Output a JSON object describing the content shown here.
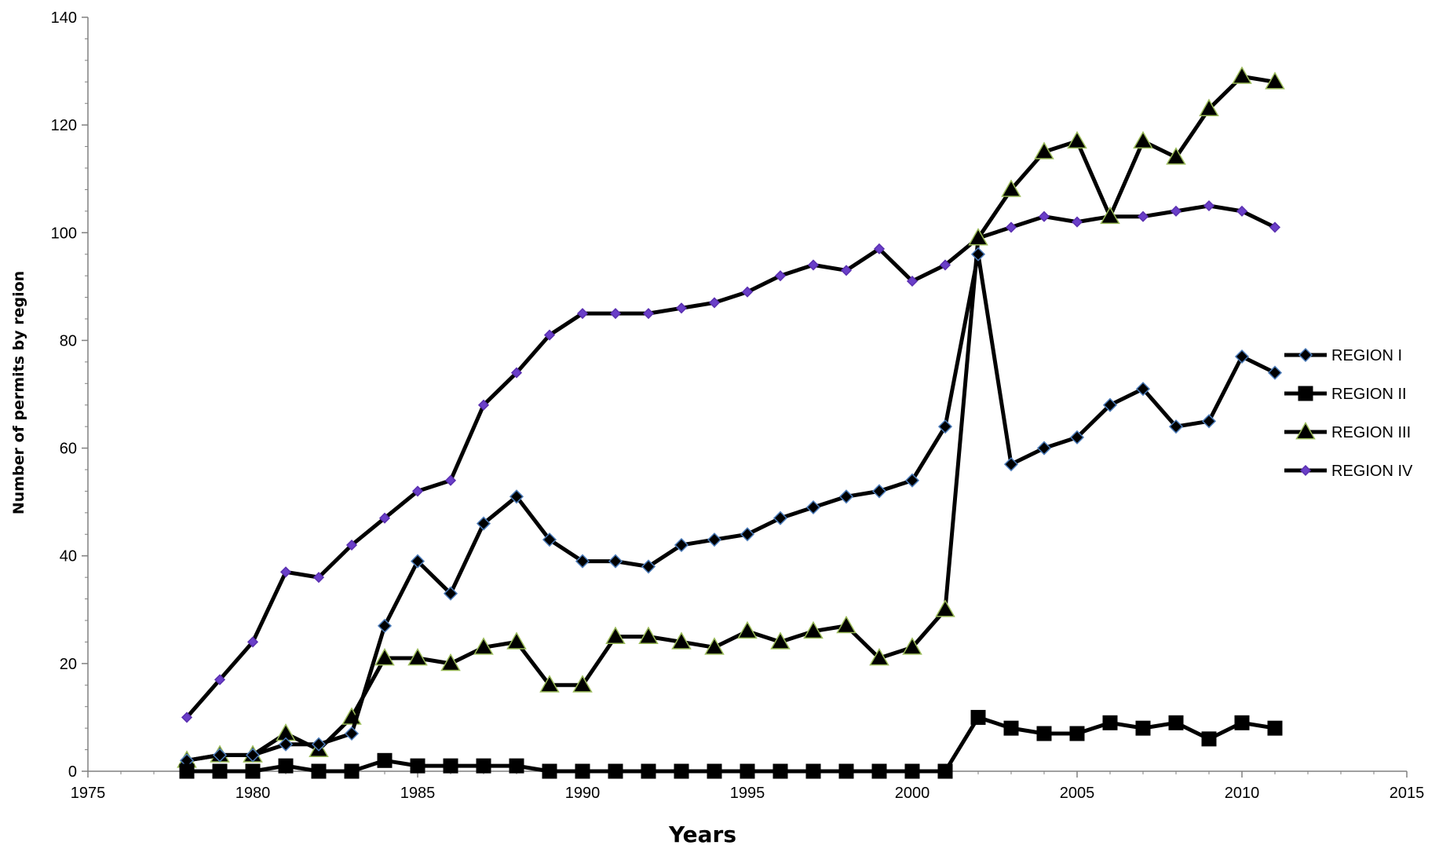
{
  "chart_data": {
    "type": "line",
    "title": "",
    "xlabel": "Years",
    "ylabel": "Number of permits by region",
    "xlim": [
      1975,
      2015
    ],
    "ylim": [
      0,
      140
    ],
    "x_ticks": [
      1975,
      1980,
      1985,
      1990,
      1995,
      2000,
      2005,
      2010,
      2015
    ],
    "y_ticks": [
      0,
      20,
      40,
      60,
      80,
      100,
      120,
      140
    ],
    "grid": false,
    "legend_position": "right",
    "x": [
      1978,
      1979,
      1980,
      1981,
      1982,
      1983,
      1984,
      1985,
      1986,
      1987,
      1988,
      1989,
      1990,
      1991,
      1992,
      1993,
      1994,
      1995,
      1996,
      1997,
      1998,
      1999,
      2000,
      2001,
      2002,
      2003,
      2004,
      2005,
      2006,
      2007,
      2008,
      2009,
      2010,
      2011
    ],
    "series": [
      {
        "name": "REGION I",
        "marker": "diamond",
        "marker_fill": "#000000",
        "marker_stroke": "#4a7ab8",
        "values": [
          2,
          3,
          3,
          5,
          5,
          7,
          27,
          39,
          33,
          46,
          51,
          43,
          39,
          39,
          38,
          42,
          43,
          44,
          47,
          49,
          51,
          52,
          54,
          64,
          96,
          57,
          60,
          62,
          68,
          71,
          64,
          65,
          77,
          74
        ]
      },
      {
        "name": "REGION II",
        "marker": "square",
        "marker_fill": "#000000",
        "marker_stroke": "#000000",
        "values": [
          0,
          0,
          0,
          1,
          0,
          0,
          2,
          1,
          1,
          1,
          1,
          0,
          0,
          0,
          0,
          0,
          0,
          0,
          0,
          0,
          0,
          0,
          0,
          0,
          10,
          8,
          7,
          7,
          9,
          8,
          9,
          6,
          9,
          8
        ]
      },
      {
        "name": "REGION III",
        "marker": "triangle",
        "marker_fill": "#000000",
        "marker_stroke": "#9bbb59",
        "values": [
          2,
          3,
          3,
          7,
          4,
          10,
          21,
          21,
          20,
          23,
          24,
          16,
          16,
          25,
          25,
          24,
          23,
          26,
          24,
          26,
          27,
          21,
          23,
          30,
          99,
          108,
          115,
          117,
          103,
          117,
          114,
          123,
          129,
          128
        ]
      },
      {
        "name": "REGION IV",
        "marker": "diamond",
        "marker_fill": "#6a3fc8",
        "marker_stroke": "#5a2fb0",
        "values": [
          10,
          17,
          24,
          37,
          36,
          42,
          47,
          52,
          54,
          68,
          74,
          81,
          85,
          85,
          85,
          86,
          87,
          89,
          92,
          94,
          93,
          97,
          91,
          94,
          99,
          101,
          103,
          102,
          103,
          103,
          104,
          105,
          104,
          101
        ]
      }
    ]
  }
}
